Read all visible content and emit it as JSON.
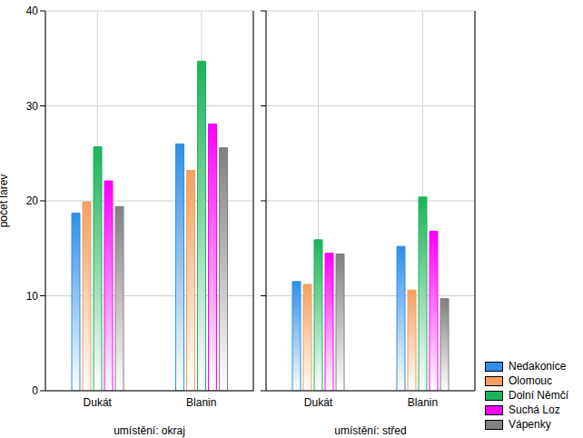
{
  "chart_data": [
    {
      "type": "bar",
      "xlabel": "umístění: okraj",
      "ylabel": "počet larev",
      "categories": [
        "Dukát",
        "Blanin"
      ],
      "series": [
        {
          "name": "Nedakonice",
          "color": "#2f8fe8",
          "values": [
            18.7,
            26.0
          ]
        },
        {
          "name": "Olomouc",
          "color": "#f5a060",
          "values": [
            19.9,
            23.2
          ]
        },
        {
          "name": "Dolní Němčí",
          "color": "#1cb35a",
          "values": [
            25.7,
            34.7
          ]
        },
        {
          "name": "Suchá Loz",
          "color": "#ff00ff",
          "values": [
            22.1,
            28.1
          ]
        },
        {
          "name": "Vápenky",
          "color": "#808080",
          "values": [
            19.4,
            25.6
          ]
        }
      ],
      "ylim": [
        0,
        40
      ],
      "yticks": [
        0,
        10,
        20,
        30,
        40
      ],
      "grid": true
    },
    {
      "type": "bar",
      "xlabel": "umístění: střed",
      "categories": [
        "Dukát",
        "Blanin"
      ],
      "series": [
        {
          "name": "Nedakonice",
          "color": "#2f8fe8",
          "values": [
            11.5,
            15.2
          ]
        },
        {
          "name": "Olomouc",
          "color": "#f5a060",
          "values": [
            11.2,
            10.6
          ]
        },
        {
          "name": "Dolní Němčí",
          "color": "#1cb35a",
          "values": [
            15.9,
            20.4
          ]
        },
        {
          "name": "Suchá Loz",
          "color": "#ff00ff",
          "values": [
            14.5,
            16.8
          ]
        },
        {
          "name": "Vápenky",
          "color": "#808080",
          "values": [
            14.4,
            9.7
          ]
        }
      ],
      "ylim": [
        0,
        40
      ],
      "yticks": [
        0,
        10,
        20,
        30,
        40
      ],
      "grid": true,
      "tick_labels": "x",
      "legend": "lower right"
    }
  ]
}
